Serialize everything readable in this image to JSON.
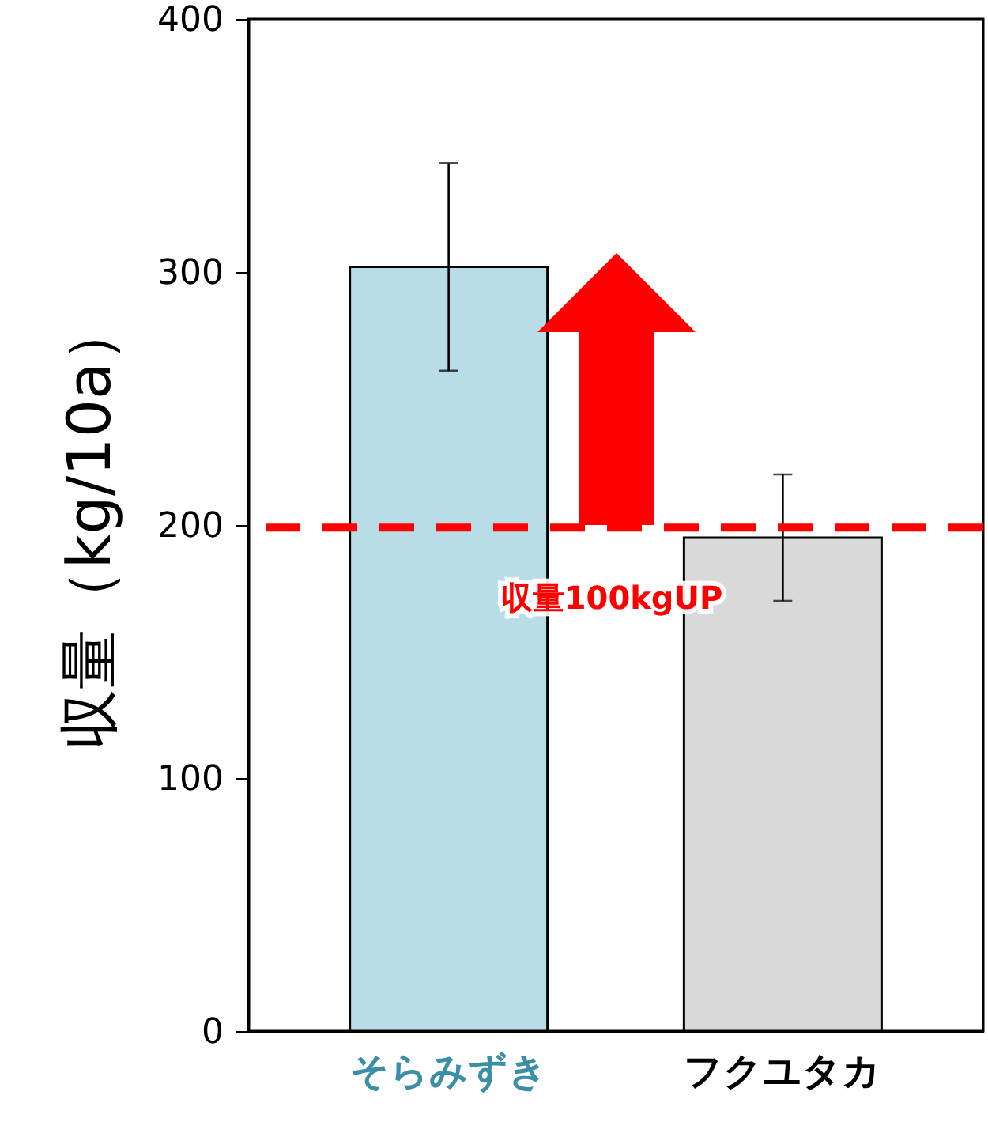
{
  "chart_data": {
    "type": "bar",
    "ylabel": "収量（kg/10a）",
    "categories": [
      "そらみずき",
      "フクユタカ"
    ],
    "values": [
      302,
      195
    ],
    "colors": [
      "#b8dde7",
      "#d9d9d9"
    ],
    "errors": [
      41,
      25
    ],
    "ylim": [
      0,
      400
    ],
    "yticks": [
      0,
      100,
      200,
      300,
      400
    ],
    "grid": false,
    "ref_lines": [
      {
        "axis": "y",
        "value": 199,
        "color": "#ff0000",
        "line_style": "dashed"
      }
    ],
    "annotations": [
      "収量100kgUP"
    ]
  }
}
